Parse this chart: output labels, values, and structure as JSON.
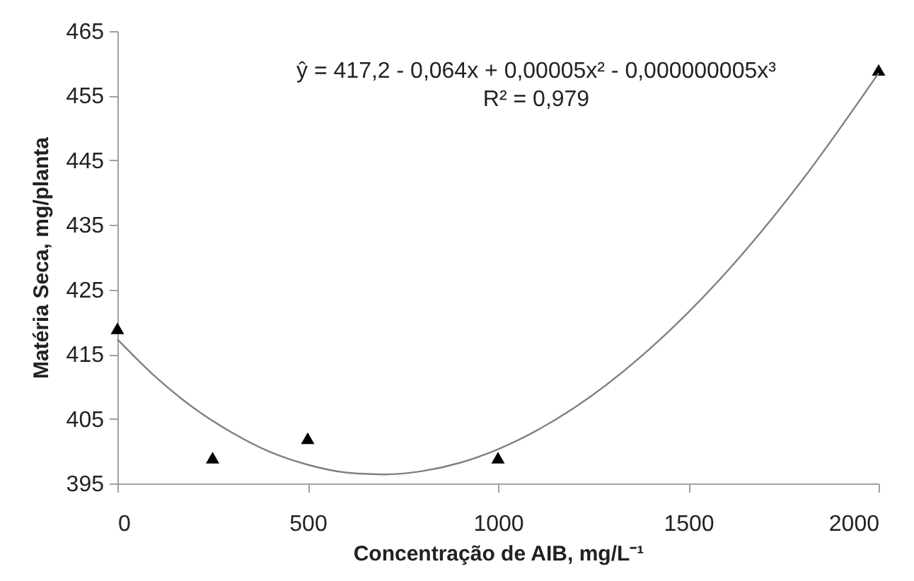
{
  "chart_data": {
    "type": "scatter",
    "xlabel": "Concentração de AIB, mg/L⁻¹",
    "ylabel": "Matéria Seca, mg/planta",
    "annotations": [
      "ŷ = 417,2 - 0,064x + 0,00005x² - 0,000000005x³",
      "R² = 0,979"
    ],
    "xlim": [
      0,
      2000
    ],
    "xticks": [
      0,
      500,
      1000,
      1500,
      2000
    ],
    "ylim": [
      395,
      465
    ],
    "yticks": [
      395,
      405,
      415,
      425,
      435,
      445,
      455,
      465
    ],
    "grid": false,
    "series": [
      {
        "marker": "triangle",
        "color": "#000000",
        "x": [
          0,
          250,
          500,
          1000,
          2000
        ],
        "values": [
          419,
          399,
          402,
          399,
          459
        ]
      },
      {
        "type": "line",
        "marker": "none",
        "color": "#808080",
        "x": [
          0,
          100,
          200,
          300,
          400,
          500,
          600,
          700,
          800,
          900,
          1000,
          1200,
          1400,
          1600,
          1800,
          2000
        ],
        "values": [
          417.3,
          411.5,
          406.7,
          402.9,
          399.9,
          397.9,
          396.7,
          396.4,
          396.9,
          398.2,
          400.3,
          406.7,
          415.9,
          427.7,
          442.0,
          458.5
        ]
      }
    ]
  }
}
